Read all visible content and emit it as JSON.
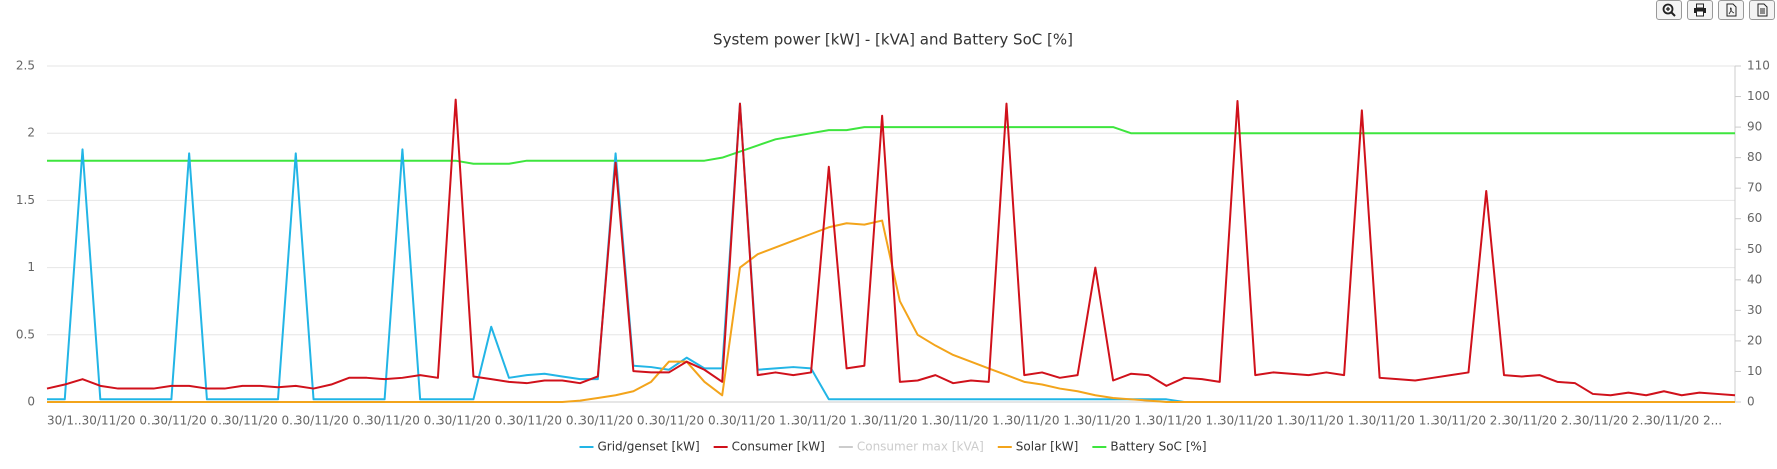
{
  "chart_data": {
    "type": "line",
    "title": "System power [kW] - [kVA] and Battery SoC [%]",
    "categories": [
      "30/1...",
      null,
      null,
      null,
      "30/11/20 0...",
      null,
      null,
      null,
      "30/11/20 0...",
      null,
      null,
      null,
      "30/11/20 0...",
      null,
      null,
      null,
      "30/11/20 0...",
      null,
      null,
      null,
      "30/11/20 0...",
      null,
      null,
      null,
      "30/11/20 0...",
      null,
      null,
      null,
      "30/11/20 0...",
      null,
      null,
      null,
      "30/11/20 0...",
      null,
      null,
      null,
      "30/11/20 0...",
      null,
      null,
      null,
      "30/11/20 1...",
      null,
      null,
      null,
      "30/11/20 1...",
      null,
      null,
      null,
      "30/11/20 1...",
      null,
      null,
      null,
      "30/11/20 1...",
      null,
      null,
      null,
      "30/11/20 1...",
      null,
      null,
      null,
      "30/11/20 1...",
      null,
      null,
      null,
      "30/11/20 1...",
      null,
      null,
      null,
      "30/11/20 1...",
      null,
      null,
      null,
      "30/11/20 1...",
      null,
      null,
      null,
      "30/11/20 1...",
      null,
      null,
      null,
      "30/11/20 2...",
      null,
      null,
      null,
      "30/11/20 2...",
      null,
      null,
      null,
      "30/11/20 2...",
      null,
      null,
      null,
      "30/11/20 2...",
      null,
      null,
      null
    ],
    "ylim": [
      0,
      2.5
    ],
    "yticks": [
      0,
      0.5,
      1,
      1.5,
      2,
      2.5
    ],
    "y2lim": [
      0,
      110
    ],
    "y2ticks": [
      0,
      10,
      20,
      30,
      40,
      50,
      60,
      70,
      80,
      90,
      100,
      110
    ],
    "grid": true,
    "legend": "bottom",
    "series": [
      {
        "name": "Grid/genset [kW]",
        "color": "#22b5e6",
        "visible": true,
        "values": [
          0.02,
          0.02,
          1.88,
          0.02,
          0.02,
          0.02,
          0.02,
          0.02,
          1.85,
          0.02,
          0.02,
          0.02,
          0.02,
          0.02,
          1.85,
          0.02,
          0.02,
          0.02,
          0.02,
          0.02,
          1.88,
          0.02,
          0.02,
          0.02,
          0.02,
          0.56,
          0.18,
          0.2,
          0.21,
          0.19,
          0.17,
          0.17,
          1.85,
          0.27,
          0.26,
          0.24,
          0.33,
          0.25,
          0.25,
          2.22,
          0.24,
          0.25,
          0.26,
          0.25,
          0.02,
          0.02,
          0.02,
          0.02,
          0.02,
          0.02,
          0.02,
          0.02,
          0.02,
          0.02,
          0.02,
          0.02,
          0.02,
          0.02,
          0.02,
          0.02,
          0.02,
          0.02,
          0.02,
          0.02,
          0,
          0,
          0,
          0,
          0,
          0,
          0,
          0,
          0,
          0,
          0,
          0,
          0,
          0,
          0,
          0,
          0,
          0,
          0,
          0,
          0,
          0,
          0,
          0,
          0,
          0,
          0,
          0,
          0,
          0,
          0,
          0
        ]
      },
      {
        "name": "Consumer [kW]",
        "color": "#d0111b",
        "visible": true,
        "values": [
          0.1,
          0.13,
          0.17,
          0.12,
          0.1,
          0.1,
          0.1,
          0.12,
          0.12,
          0.1,
          0.1,
          0.12,
          0.12,
          0.11,
          0.12,
          0.1,
          0.13,
          0.18,
          0.18,
          0.17,
          0.18,
          0.2,
          0.18,
          2.25,
          0.19,
          0.17,
          0.15,
          0.14,
          0.16,
          0.16,
          0.14,
          0.19,
          1.78,
          0.23,
          0.22,
          0.22,
          0.3,
          0.24,
          0.15,
          2.22,
          0.2,
          0.22,
          0.2,
          0.22,
          1.75,
          0.25,
          0.27,
          2.13,
          0.15,
          0.16,
          0.2,
          0.14,
          0.16,
          0.15,
          2.22,
          0.2,
          0.22,
          0.18,
          0.2,
          1.0,
          0.16,
          0.21,
          0.2,
          0.12,
          0.18,
          0.17,
          0.15,
          2.24,
          0.2,
          0.22,
          0.21,
          0.2,
          0.22,
          0.2,
          2.17,
          0.18,
          0.17,
          0.16,
          0.18,
          0.2,
          0.22,
          1.57,
          0.2,
          0.19,
          0.2,
          0.15,
          0.14,
          0.06,
          0.05,
          0.07,
          0.05,
          0.08,
          0.05,
          0.07,
          0.06,
          0.05
        ]
      },
      {
        "name": "Consumer max [kVA]",
        "color": "#cccccc",
        "visible": false,
        "values": [
          null,
          null,
          null,
          null,
          null,
          null,
          null,
          null,
          null,
          null,
          null,
          null,
          null,
          null,
          null,
          null,
          null,
          null,
          null,
          null,
          null,
          null,
          null,
          null,
          null,
          null,
          null,
          null,
          null,
          null,
          null,
          null,
          null,
          null,
          null,
          null,
          null,
          null,
          null,
          null,
          null,
          null,
          null,
          null,
          null,
          null,
          null,
          null,
          null,
          null,
          null,
          null,
          null,
          null,
          null,
          null,
          null,
          null,
          null,
          null,
          null,
          null,
          null,
          null,
          null,
          null,
          null,
          null,
          null,
          null,
          null,
          null,
          null,
          null,
          null,
          null,
          null,
          null,
          null,
          null,
          null,
          null,
          null,
          null,
          null,
          null,
          null,
          null,
          null,
          null,
          null,
          null,
          null,
          null,
          null,
          null
        ]
      },
      {
        "name": "Solar [kW]",
        "color": "#f3a41b",
        "visible": true,
        "values": [
          0,
          0,
          0,
          0,
          0,
          0,
          0,
          0,
          0,
          0,
          0,
          0,
          0,
          0,
          0,
          0,
          0,
          0,
          0,
          0,
          0,
          0,
          0,
          0,
          0,
          0,
          0,
          0,
          0,
          0,
          0.01,
          0.03,
          0.05,
          0.08,
          0.15,
          0.3,
          0.3,
          0.15,
          0.05,
          1.0,
          1.1,
          1.15,
          1.2,
          1.25,
          1.3,
          1.33,
          1.32,
          1.35,
          0.75,
          0.5,
          0.42,
          0.35,
          0.3,
          0.25,
          0.2,
          0.15,
          0.13,
          0.1,
          0.08,
          0.05,
          0.03,
          0.02,
          0.01,
          0,
          0,
          0,
          0,
          0,
          0,
          0,
          0,
          0,
          0,
          0,
          0,
          0,
          0,
          0,
          0,
          0,
          0,
          0,
          0,
          0,
          0,
          0,
          0,
          0,
          0,
          0,
          0,
          0,
          0,
          0,
          0,
          0
        ]
      },
      {
        "name": "Battery SoC [%]",
        "color": "#3ee53e",
        "visible": true,
        "axis": "y2",
        "values": [
          79,
          79,
          79,
          79,
          79,
          79,
          79,
          79,
          79,
          79,
          79,
          79,
          79,
          79,
          79,
          79,
          79,
          79,
          79,
          79,
          79,
          79,
          79,
          79,
          78,
          78,
          78,
          79,
          79,
          79,
          79,
          79,
          79,
          79,
          79,
          79,
          79,
          79,
          80,
          82,
          84,
          86,
          87,
          88,
          89,
          89,
          90,
          90,
          90,
          90,
          90,
          90,
          90,
          90,
          90,
          90,
          90,
          90,
          90,
          90,
          90,
          88,
          88,
          88,
          88,
          88,
          88,
          88,
          88,
          88,
          88,
          88,
          88,
          88,
          88,
          88,
          88,
          88,
          88,
          88,
          88,
          88,
          88,
          88,
          88,
          88,
          88,
          88,
          88,
          88,
          88,
          88,
          88,
          88,
          88,
          88
        ]
      }
    ]
  }
}
